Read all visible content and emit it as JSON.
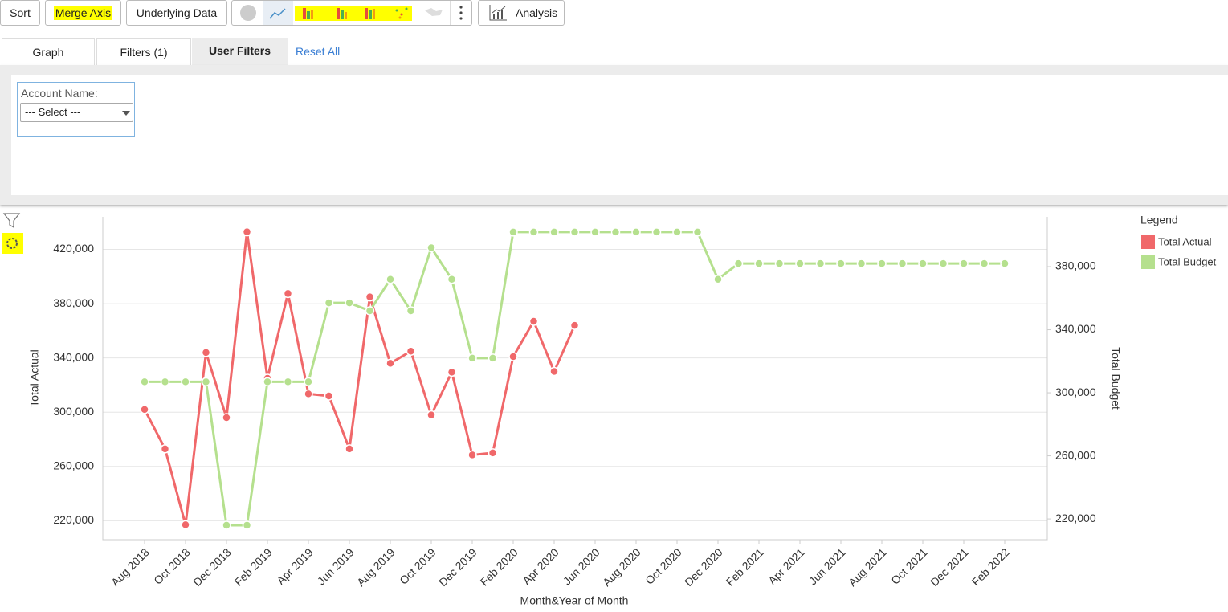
{
  "toolbar": {
    "sort": "Sort",
    "merge_axis": "Merge Axis",
    "underlying_data": "Underlying Data",
    "analysis": "Analysis"
  },
  "tabs": {
    "graph": "Graph",
    "filters": "Filters (1)",
    "user_filters": "User Filters",
    "reset_all": "Reset All"
  },
  "filter": {
    "label": "Account Name:",
    "select": "--- Select ---"
  },
  "chart_data": {
    "type": "line",
    "legend_title": "Legend",
    "legend_position": "right",
    "grid": true,
    "x_label": "Month&Year of Month",
    "y_label": "Total Actual",
    "y2_label": "Total Budget",
    "categories": [
      "Aug 2018",
      null,
      "Oct 2018",
      null,
      "Dec 2018",
      null,
      "Feb 2019",
      null,
      "Apr 2019",
      null,
      "Jun 2019",
      null,
      "Aug 2019",
      null,
      "Oct 2019",
      null,
      "Dec 2019",
      null,
      "Feb 2020",
      null,
      "Apr 2020",
      null,
      "Jun 2020",
      null,
      "Aug 2020",
      null,
      "Oct 2020",
      null,
      "Dec 2020",
      null,
      "Feb 2021",
      null,
      "Apr 2021",
      null,
      "Jun 2021",
      null,
      "Aug 2021",
      null,
      "Oct 2021",
      null,
      "Dec 2021",
      null,
      "Feb 2022"
    ],
    "ylim": [
      206000,
      444000
    ],
    "yticks": [
      {
        "value": 220000,
        "label": "220,000"
      },
      {
        "value": 260000,
        "label": "260,000"
      },
      {
        "value": 300000,
        "label": "300,000"
      },
      {
        "value": 340000,
        "label": "340,000"
      },
      {
        "value": 380000,
        "label": "380,000"
      },
      {
        "value": 420000,
        "label": "420,000"
      }
    ],
    "y2lim": [
      206800,
      411600
    ],
    "y2ticks": [
      {
        "value": 220000,
        "label": "220,000"
      },
      {
        "value": 260000,
        "label": "260,000"
      },
      {
        "value": 300000,
        "label": "300,000"
      },
      {
        "value": 340000,
        "label": "340,000"
      },
      {
        "value": 380000,
        "label": "380,000"
      }
    ],
    "series": [
      {
        "name": "Total Actual",
        "color": "#f0686a",
        "axis": "y",
        "values": [
          302000,
          273000,
          217000,
          344000,
          296000,
          433000,
          325000,
          387500,
          313500,
          312000,
          273000,
          385000,
          336000,
          345000,
          298000,
          329500,
          268500,
          270000,
          341000,
          367000,
          330000,
          364000,
          null,
          null,
          null,
          null,
          null,
          null,
          null,
          null,
          null,
          null,
          null,
          null,
          null,
          null,
          null,
          null,
          null,
          null,
          null,
          null,
          null
        ]
      },
      {
        "name": "Total Budget",
        "color": "#b5e08e",
        "axis": "y2",
        "values": [
          307000,
          307000,
          307000,
          307000,
          216000,
          216000,
          307000,
          307000,
          307000,
          357000,
          357000,
          352000,
          372000,
          352000,
          392000,
          372000,
          322000,
          322000,
          402000,
          402000,
          402000,
          402000,
          402000,
          402000,
          402000,
          402000,
          402000,
          402000,
          372000,
          382000,
          382000,
          382000,
          382000,
          382000,
          382000,
          382000,
          382000,
          382000,
          382000,
          382000,
          382000,
          382000,
          382000
        ]
      }
    ]
  }
}
